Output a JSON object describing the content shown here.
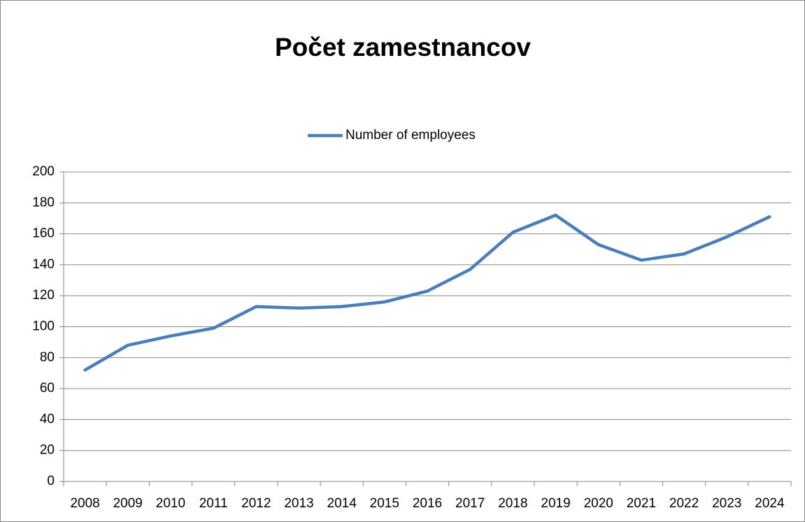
{
  "chart_data": {
    "type": "line",
    "title": "Počet zamestnancov",
    "categories": [
      "2008",
      "2009",
      "2010",
      "2011",
      "2012",
      "2013",
      "2014",
      "2015",
      "2016",
      "2017",
      "2018",
      "2019",
      "2020",
      "2021",
      "2022",
      "2023",
      "2024"
    ],
    "series": [
      {
        "name": "Number of employees",
        "color": "#4a7ebb",
        "values": [
          72,
          88,
          94,
          99,
          113,
          112,
          113,
          116,
          123,
          137,
          161,
          172,
          153,
          143,
          147,
          158,
          171
        ]
      }
    ],
    "ylim": [
      0,
      200
    ],
    "yticks": [
      0,
      20,
      40,
      60,
      80,
      100,
      120,
      140,
      160,
      180,
      200
    ],
    "grid": true,
    "legend": "top"
  }
}
